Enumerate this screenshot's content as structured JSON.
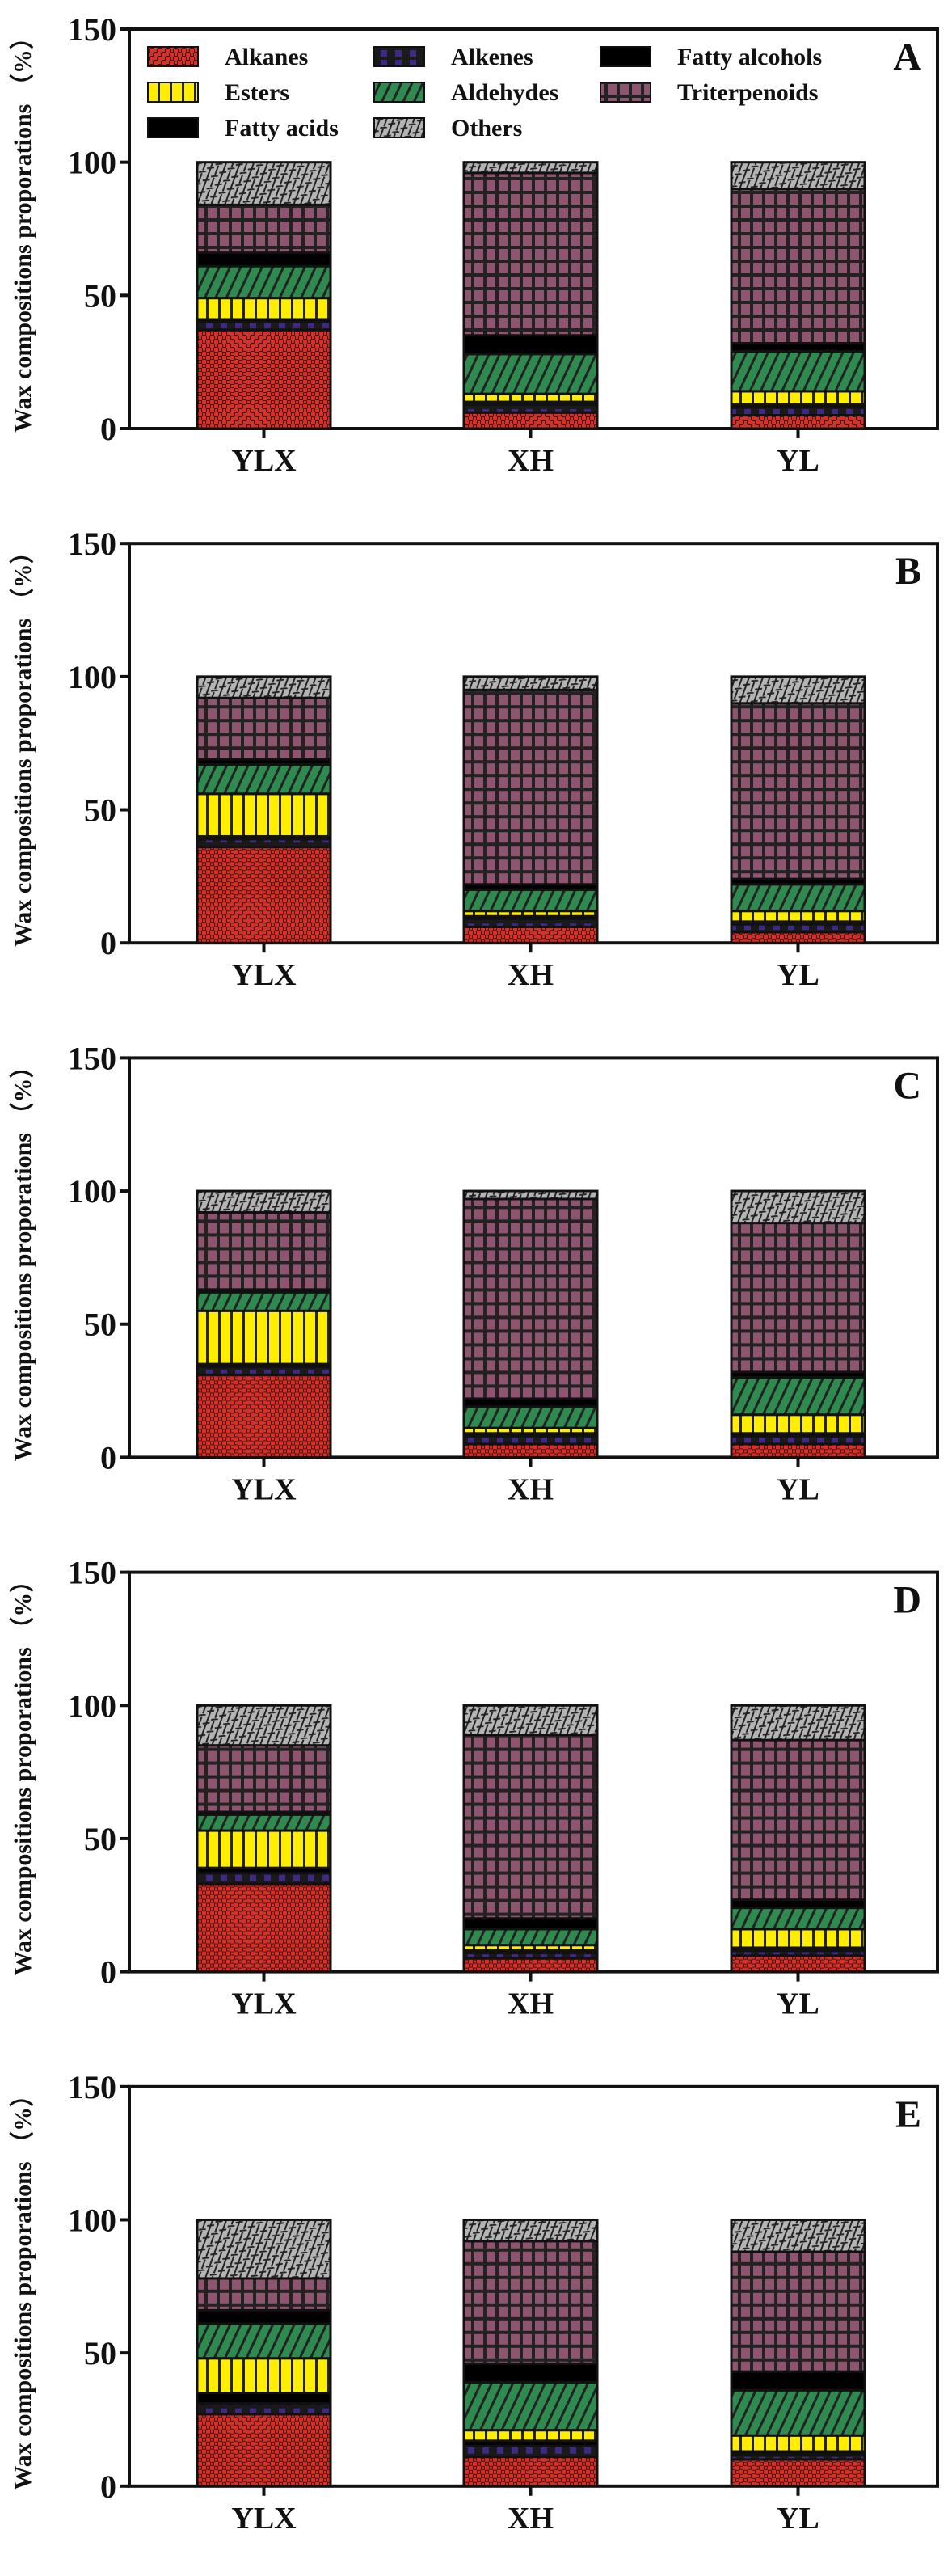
{
  "chart_data": [
    {
      "type": "bar",
      "stacked": true,
      "panel_label": "A",
      "categories": [
        "YLX",
        "XH",
        "YL"
      ],
      "ylabel": "Wax compositions proporations （%）",
      "ylim": [
        0,
        150
      ],
      "yticks": [
        0,
        50,
        100,
        150
      ],
      "series": [
        {
          "name": "Alkanes",
          "values": [
            37,
            6,
            5
          ]
        },
        {
          "name": "Alkenes",
          "values": [
            3,
            3,
            3
          ]
        },
        {
          "name": "Fatty acids",
          "values": [
            1,
            1,
            1
          ]
        },
        {
          "name": "Esters",
          "values": [
            8,
            3,
            5
          ]
        },
        {
          "name": "Aldehydes",
          "values": [
            12,
            15,
            15
          ]
        },
        {
          "name": "Fatty alcohols",
          "values": [
            5,
            7,
            3
          ]
        },
        {
          "name": "Triterpenoids",
          "values": [
            18,
            61,
            58
          ]
        },
        {
          "name": "Others",
          "values": [
            16,
            4,
            10
          ]
        }
      ]
    },
    {
      "type": "bar",
      "stacked": true,
      "panel_label": "B",
      "categories": [
        "YLX",
        "XH",
        "YL"
      ],
      "ylabel": "Wax compositions proporations （%）",
      "ylim": [
        0,
        150
      ],
      "yticks": [
        0,
        50,
        100,
        150
      ],
      "series": [
        {
          "name": "Alkanes",
          "values": [
            36,
            6,
            4
          ]
        },
        {
          "name": "Alkenes",
          "values": [
            3,
            3,
            3
          ]
        },
        {
          "name": "Fatty acids",
          "values": [
            1,
            1,
            1
          ]
        },
        {
          "name": "Esters",
          "values": [
            16,
            2,
            4
          ]
        },
        {
          "name": "Aldehydes",
          "values": [
            11,
            8,
            10
          ]
        },
        {
          "name": "Fatty alcohols",
          "values": [
            2,
            2,
            2
          ]
        },
        {
          "name": "Triterpenoids",
          "values": [
            23,
            73,
            66
          ]
        },
        {
          "name": "Others",
          "values": [
            8,
            5,
            10
          ]
        }
      ]
    },
    {
      "type": "bar",
      "stacked": true,
      "panel_label": "C",
      "categories": [
        "YLX",
        "XH",
        "YL"
      ],
      "ylabel": "Wax compositions proporations （%）",
      "ylim": [
        0,
        150
      ],
      "yticks": [
        0,
        50,
        100,
        150
      ],
      "series": [
        {
          "name": "Alkanes",
          "values": [
            31,
            5,
            5
          ]
        },
        {
          "name": "Alkenes",
          "values": [
            3,
            3,
            3
          ]
        },
        {
          "name": "Fatty acids",
          "values": [
            1,
            1,
            1
          ]
        },
        {
          "name": "Esters",
          "values": [
            20,
            2,
            7
          ]
        },
        {
          "name": "Aldehydes",
          "values": [
            7,
            8,
            14
          ]
        },
        {
          "name": "Fatty alcohols",
          "values": [
            1,
            3,
            2
          ]
        },
        {
          "name": "Triterpenoids",
          "values": [
            29,
            75,
            56
          ]
        },
        {
          "name": "Others",
          "values": [
            8,
            3,
            12
          ]
        }
      ]
    },
    {
      "type": "bar",
      "stacked": true,
      "panel_label": "D",
      "categories": [
        "YLX",
        "XH",
        "YL"
      ],
      "ylabel": "Wax compositions proporations （%）",
      "ylim": [
        0,
        150
      ],
      "yticks": [
        0,
        50,
        100,
        150
      ],
      "series": [
        {
          "name": "Alkanes",
          "values": [
            33,
            5,
            6
          ]
        },
        {
          "name": "Alkenes",
          "values": [
            4,
            2,
            2
          ]
        },
        {
          "name": "Fatty acids",
          "values": [
            2,
            1,
            1
          ]
        },
        {
          "name": "Esters",
          "values": [
            14,
            2,
            7
          ]
        },
        {
          "name": "Aldehydes",
          "values": [
            6,
            6,
            8
          ]
        },
        {
          "name": "Fatty alcohols",
          "values": [
            1,
            4,
            3
          ]
        },
        {
          "name": "Triterpenoids",
          "values": [
            25,
            69,
            60
          ]
        },
        {
          "name": "Others",
          "values": [
            15,
            11,
            13
          ]
        }
      ]
    },
    {
      "type": "bar",
      "stacked": true,
      "panel_label": "E",
      "categories": [
        "YLX",
        "XH",
        "YL"
      ],
      "ylabel": "Wax compositions proporations （%）",
      "ylim": [
        0,
        150
      ],
      "yticks": [
        0,
        50,
        100,
        150
      ],
      "series": [
        {
          "name": "Alkanes",
          "values": [
            27,
            11,
            10
          ]
        },
        {
          "name": "Alkenes",
          "values": [
            4,
            4,
            2
          ]
        },
        {
          "name": "Fatty acids",
          "values": [
            4,
            2,
            1
          ]
        },
        {
          "name": "Esters",
          "values": [
            13,
            4,
            6
          ]
        },
        {
          "name": "Aldehydes",
          "values": [
            13,
            18,
            17
          ]
        },
        {
          "name": "Fatty alcohols",
          "values": [
            5,
            7,
            7
          ]
        },
        {
          "name": "Triterpenoids",
          "values": [
            12,
            46,
            45
          ]
        },
        {
          "name": "Others",
          "values": [
            22,
            8,
            12
          ]
        }
      ]
    }
  ],
  "legend": {
    "placement": "top, inside panel A",
    "entries": [
      "Alkanes",
      "Alkenes",
      "Fatty alcohols",
      "Esters",
      "Aldehydes",
      "Triterpenoids",
      "Fatty acids",
      "Others"
    ]
  },
  "colors": {
    "Alkanes": "#e8291f",
    "Alkenes": "#3e2a86",
    "Fatty acids": "#e04058",
    "Esters": "#ffee00",
    "Aldehydes": "#2e8a4e",
    "Fatty alcohols": "#f07820",
    "Triterpenoids": "#8e5470",
    "Others": "#b4b4b4"
  }
}
